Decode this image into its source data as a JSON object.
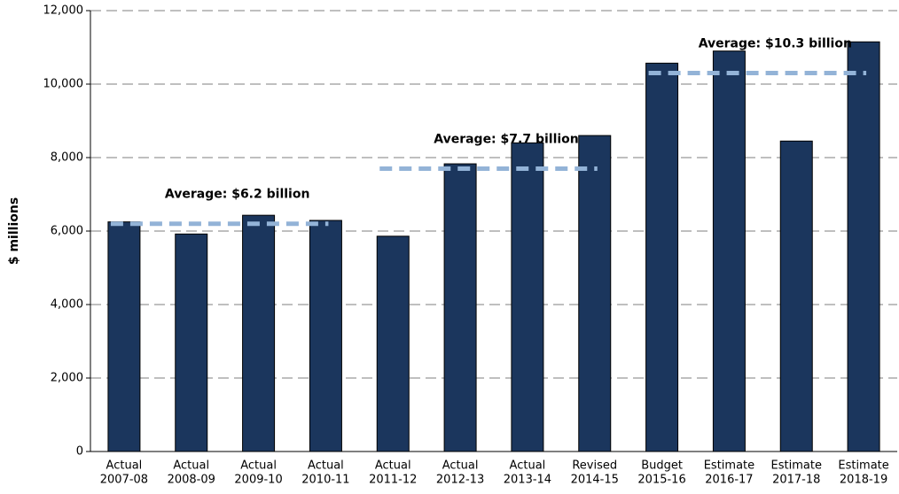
{
  "chart_data": {
    "type": "bar",
    "y_axis_label": "$ millions",
    "categories": [
      [
        "Actual",
        "2007-08"
      ],
      [
        "Actual",
        "2008-09"
      ],
      [
        "Actual",
        "2009-10"
      ],
      [
        "Actual",
        "2010-11"
      ],
      [
        "Actual",
        "2011-12"
      ],
      [
        "Actual",
        "2012-13"
      ],
      [
        "Actual",
        "2013-14"
      ],
      [
        "Revised",
        "2014-15"
      ],
      [
        "Budget",
        "2015-16"
      ],
      [
        "Estimate",
        "2016-17"
      ],
      [
        "Estimate",
        "2017-18"
      ],
      [
        "Estimate",
        "2018-19"
      ]
    ],
    "values": [
      6250,
      5920,
      6430,
      6290,
      5860,
      7830,
      8400,
      8600,
      10570,
      10900,
      8450,
      11150
    ],
    "color": "#1b365d",
    "ylim": [
      0,
      12000
    ],
    "yticks": [
      0,
      {
        "value": 2000,
        "label": "2,000"
      },
      {
        "value": 4000,
        "label": "4,000"
      },
      {
        "value": 6000,
        "label": "6,000"
      },
      {
        "value": 8000,
        "label": "8,000"
      },
      {
        "value": 10000,
        "label": "10,000"
      },
      {
        "value": 12000,
        "label": "12,000"
      }
    ],
    "grid": true,
    "averages": [
      {
        "label": "Average:  $6.2 billion",
        "value": 6200,
        "start": 0,
        "end": 3
      },
      {
        "label": "Average:  $7.7 billion",
        "value": 7700,
        "start": 4,
        "end": 7
      },
      {
        "label": "Average:  $10.3 billion",
        "value": 10300,
        "start": 8,
        "end": 11
      }
    ],
    "average_color": "#93b3d7"
  }
}
